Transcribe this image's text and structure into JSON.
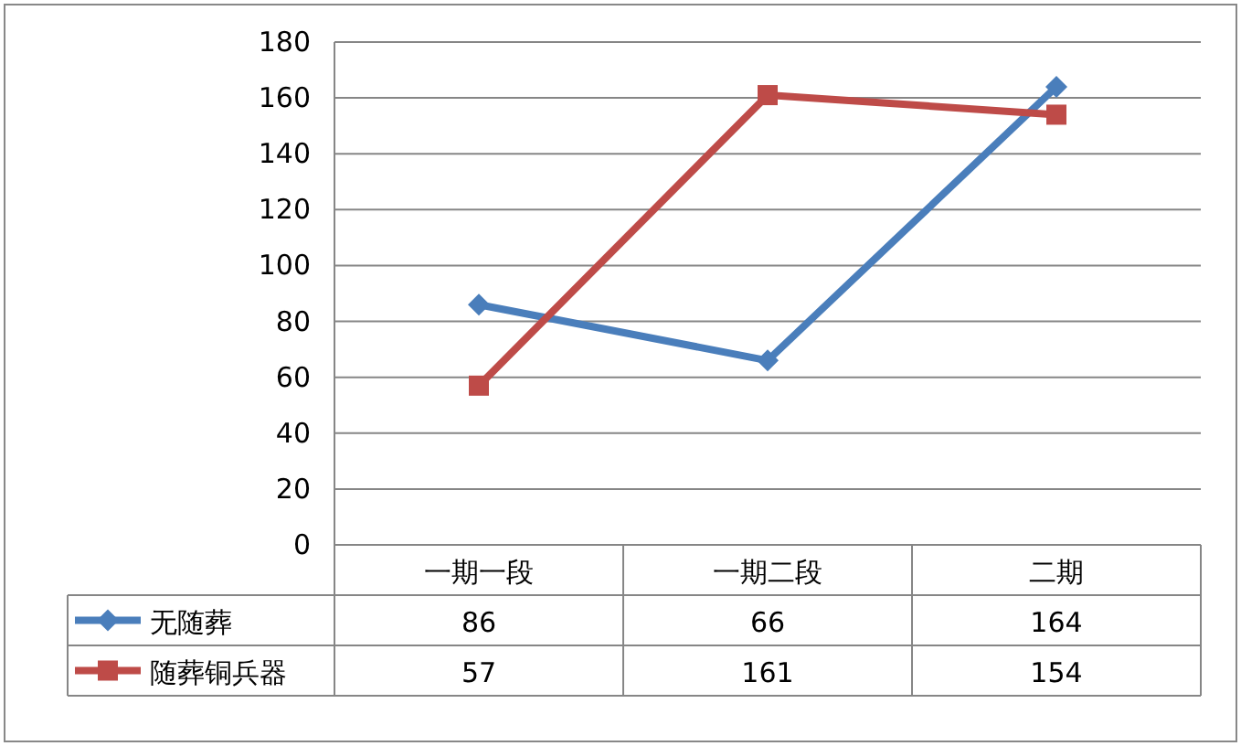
{
  "chart_data": {
    "type": "line",
    "categories": [
      "一期一段",
      "一期二段",
      "二期"
    ],
    "series": [
      {
        "name": "无随葬",
        "color": "#4a7ebb",
        "marker": "diamond",
        "values": [
          86,
          66,
          164
        ]
      },
      {
        "name": "随葬铜兵器",
        "color": "#be4b48",
        "marker": "square",
        "values": [
          57,
          161,
          154
        ]
      }
    ],
    "ylim": [
      0,
      180
    ],
    "yticks": [
      0,
      20,
      40,
      60,
      80,
      100,
      120,
      140,
      160,
      180
    ],
    "grid": "y",
    "data_labels": true,
    "legend": "bottom"
  }
}
